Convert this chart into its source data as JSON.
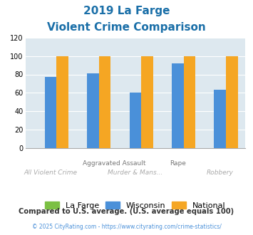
{
  "title_line1": "2019 La Farge",
  "title_line2": "Violent Crime Comparison",
  "categories": [
    "All Violent Crime",
    "Aggravated Assault",
    "Murder & Mans...",
    "Rape",
    "Robbery"
  ],
  "series": {
    "La Farge": [
      0,
      0,
      0,
      0,
      0
    ],
    "Wisconsin": [
      77,
      81,
      60,
      92,
      63
    ],
    "National": [
      100,
      100,
      100,
      100,
      100
    ]
  },
  "colors": {
    "La Farge": "#7bc043",
    "Wisconsin": "#4a90d9",
    "National": "#f5a623"
  },
  "ylim": [
    0,
    120
  ],
  "yticks": [
    0,
    20,
    40,
    60,
    80,
    100,
    120
  ],
  "footnote1": "Compared to U.S. average. (U.S. average equals 100)",
  "footnote2": "© 2025 CityRating.com - https://www.cityrating.com/crime-statistics/",
  "title_color": "#1a6fa8",
  "footnote1_color": "#333333",
  "footnote2_color": "#4a90d9",
  "plot_bg_color": "#dde8ef",
  "bar_width": 0.28
}
